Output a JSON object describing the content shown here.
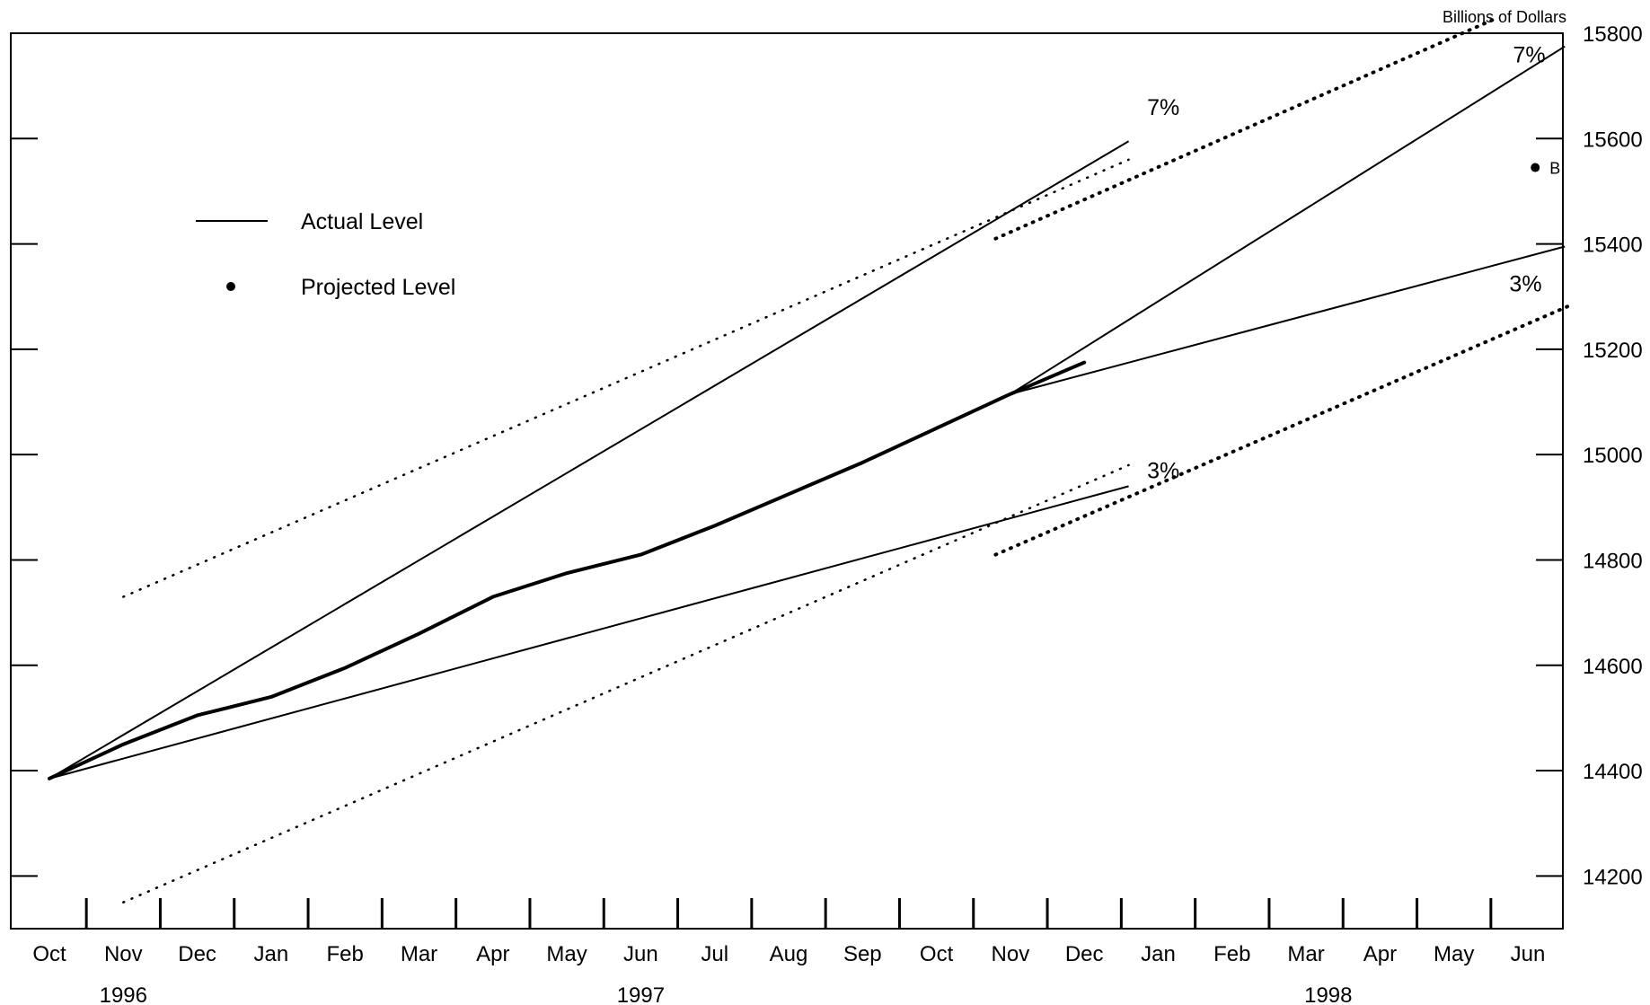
{
  "chart_data": {
    "type": "line",
    "unit_label": "Billions of Dollars",
    "ylim": [
      14100,
      15800
    ],
    "y_ticks": [
      14200,
      14400,
      14600,
      14800,
      15000,
      15200,
      15400,
      15600,
      15800
    ],
    "months": [
      "Oct",
      "Nov",
      "Dec",
      "Jan",
      "Feb",
      "Mar",
      "Apr",
      "May",
      "Jun",
      "Jul",
      "Aug",
      "Sep",
      "Oct",
      "Nov",
      "Dec",
      "Jan",
      "Feb",
      "Mar",
      "Apr",
      "May",
      "Jun"
    ],
    "years": [
      {
        "label": "1996",
        "month_index": 1
      },
      {
        "label": "1997",
        "month_index": 8
      },
      {
        "label": "1998",
        "month_index": 17.3
      }
    ],
    "legend": {
      "actual": "Actual Level",
      "projected": "Projected Level"
    },
    "series": [
      {
        "name": "Actual Level",
        "style": "solid-bold",
        "x": [
          0,
          1,
          2,
          3,
          4,
          5,
          6,
          7,
          8,
          9,
          10,
          11,
          12,
          13,
          14
        ],
        "y": [
          14385,
          14450,
          14505,
          14540,
          14595,
          14660,
          14730,
          14775,
          14810,
          14865,
          14925,
          14985,
          15050,
          15115,
          15175
        ]
      }
    ],
    "growth_cones": [
      {
        "label": "7%",
        "x": [
          0,
          14.6
        ],
        "y": [
          14385,
          15595
        ],
        "style": "solid"
      },
      {
        "label": "3%",
        "x": [
          0,
          14.6
        ],
        "y": [
          14385,
          14940
        ],
        "style": "solid"
      },
      {
        "label": "7%",
        "x": [
          13,
          20.5
        ],
        "y": [
          15115,
          15775
        ],
        "style": "solid"
      },
      {
        "label": "3%",
        "x": [
          13,
          20.5
        ],
        "y": [
          15115,
          15395
        ],
        "style": "solid"
      }
    ],
    "dotted_bands": [
      {
        "x": [
          1,
          14.6
        ],
        "y": [
          14730,
          15560
        ],
        "style": "dotted"
      },
      {
        "x": [
          1,
          14.6
        ],
        "y": [
          14150,
          14980
        ],
        "style": "dotted"
      },
      {
        "x": [
          12.8,
          19.6
        ],
        "y": [
          15410,
          15830
        ],
        "style": "bold-dotted"
      },
      {
        "x": [
          12.8,
          20.6
        ],
        "y": [
          14810,
          15285
        ],
        "style": "bold-dotted"
      }
    ],
    "projected_points": [
      {
        "label": "B",
        "x": 20.1,
        "y": 15545
      }
    ],
    "band_labels": [
      {
        "text": "7%",
        "x": 14.85,
        "y": 15645
      },
      {
        "text": "3%",
        "x": 14.85,
        "y": 14955
      },
      {
        "text": "7%",
        "x": 19.8,
        "y": 15745
      },
      {
        "text": "3%",
        "x": 19.75,
        "y": 15310
      }
    ]
  }
}
